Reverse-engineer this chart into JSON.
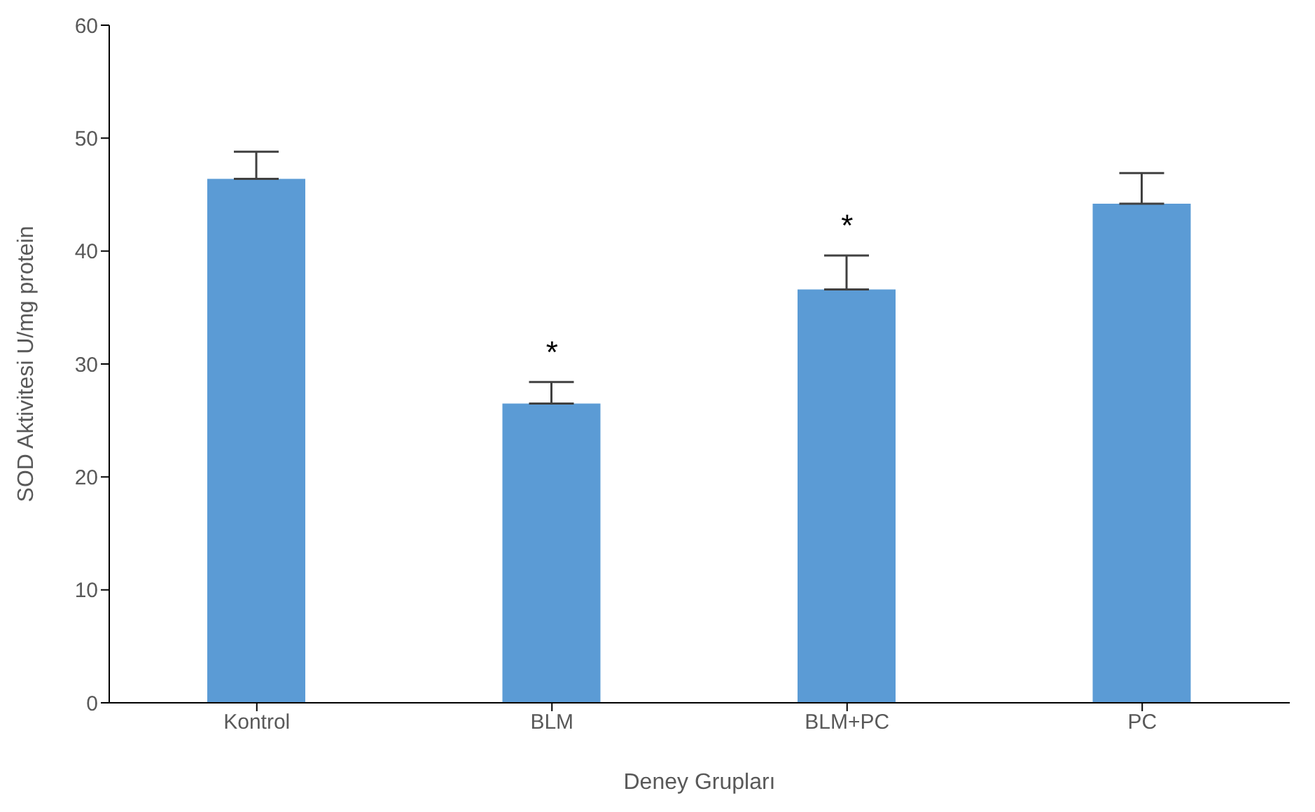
{
  "chart_data": {
    "type": "bar",
    "xlabel": "Deney Grupları",
    "ylabel": "SOD Aktivitesi U/mg protein",
    "categories": [
      "Kontrol",
      "BLM",
      "BLM+PC",
      "PC"
    ],
    "values": [
      46.4,
      26.5,
      36.6,
      44.2
    ],
    "errors": [
      [
        46.4,
        48.8
      ],
      [
        26.5,
        28.4
      ],
      [
        36.6,
        39.6
      ],
      [
        44.2,
        46.9
      ]
    ],
    "color": "#5b9bd5",
    "ylim": [
      0,
      60
    ],
    "yticks": [
      0,
      10,
      20,
      30,
      40,
      50,
      60
    ],
    "grid": false,
    "annotations": [
      {
        "text": "*",
        "x": "BLM",
        "y": 28.4
      },
      {
        "text": "*",
        "x": "BLM+PC",
        "y": 39.6
      }
    ]
  }
}
